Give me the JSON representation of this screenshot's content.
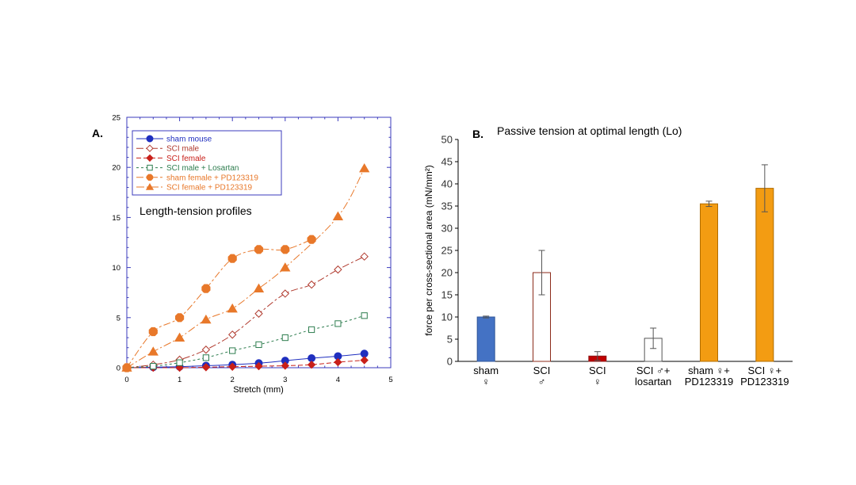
{
  "chart_data": [
    {
      "type": "line",
      "panel_label": "A.",
      "annotation": "Length-tension profiles",
      "xlabel": "Stretch (mm)",
      "ylabel": "",
      "xlim": [
        0,
        5
      ],
      "ylim": [
        0,
        25
      ],
      "x_ticks": [
        "0",
        "1",
        "2",
        "3",
        "4",
        "5"
      ],
      "y_ticks": [
        "0",
        "5",
        "10",
        "15",
        "20",
        "25"
      ],
      "legend_position": "top-left",
      "series": [
        {
          "name": "sham mouse",
          "color": "#1f2fbf",
          "marker": "circle-filled",
          "dash": "none",
          "x": [
            0,
            0.5,
            1,
            1.5,
            2,
            2.5,
            3,
            3.5,
            4,
            4.5
          ],
          "y": [
            0,
            0.05,
            0.1,
            0.2,
            0.3,
            0.45,
            0.7,
            0.95,
            1.15,
            1.4
          ]
        },
        {
          "name": "SCI male",
          "color": "#b03a2e",
          "marker": "diamond-open",
          "dash": "long-short",
          "x": [
            0,
            0.5,
            1,
            1.5,
            2,
            2.5,
            3,
            3.5,
            4,
            4.5
          ],
          "y": [
            0,
            0.3,
            0.8,
            1.8,
            3.3,
            5.4,
            7.4,
            8.3,
            9.8,
            11.1
          ]
        },
        {
          "name": "SCI female",
          "color": "#c8201a",
          "marker": "diamond-filled",
          "dash": "dash",
          "x": [
            0,
            0.5,
            1,
            1.5,
            2,
            2.5,
            3,
            3.5,
            4,
            4.5
          ],
          "y": [
            0,
            0,
            0,
            0.05,
            0.1,
            0.15,
            0.2,
            0.3,
            0.55,
            0.75
          ]
        },
        {
          "name": "SCI male + Losartan",
          "color": "#2e7d4f",
          "marker": "square-open",
          "dash": "short",
          "x": [
            0,
            0.5,
            1,
            1.5,
            2,
            2.5,
            3,
            3.5,
            4,
            4.5
          ],
          "y": [
            0,
            0.15,
            0.5,
            1.0,
            1.7,
            2.3,
            3.0,
            3.8,
            4.4,
            5.2
          ]
        },
        {
          "name": "sham female + PD123319",
          "color": "#e8782a",
          "marker": "octagon-filled",
          "dash": "long-short",
          "x": [
            0,
            0.5,
            1,
            1.5,
            2,
            2.5,
            3,
            3.5
          ],
          "y": [
            0,
            3.6,
            5.0,
            7.9,
            10.9,
            11.8,
            11.8,
            12.8
          ]
        },
        {
          "name": "SCI female + PD123319",
          "color": "#e8782a",
          "marker": "triangle-filled",
          "dash": "long-dot",
          "x": [
            0,
            0.5,
            1,
            1.5,
            2,
            2.5,
            3,
            4,
            4.5
          ],
          "y": [
            0,
            1.6,
            3.0,
            4.8,
            5.9,
            7.9,
            10.0,
            15.1,
            19.9
          ]
        }
      ]
    },
    {
      "type": "bar",
      "panel_label": "B.",
      "title": "Passive tension at optimal length (Lo)",
      "ylabel": "force per cross-sectional area (mN/mm²)",
      "ylim": [
        0,
        50
      ],
      "y_ticks": [
        "0",
        "5",
        "10",
        "15",
        "20",
        "25",
        "30",
        "35",
        "40",
        "45",
        "50"
      ],
      "categories": [
        {
          "line1": "sham",
          "line2": "♀"
        },
        {
          "line1": "SCI",
          "line2": "♂"
        },
        {
          "line1": "SCI",
          "line2": "♀"
        },
        {
          "line1": "SCI ♂+",
          "line2": "losartan"
        },
        {
          "line1": "sham ♀+",
          "line2": "PD123319"
        },
        {
          "line1": "SCI ♀+",
          "line2": "PD123319"
        }
      ],
      "values": [
        10,
        20,
        1.2,
        5.2,
        35.5,
        39
      ],
      "errors": [
        0.2,
        5,
        1,
        2.3,
        0.6,
        5.3
      ],
      "fills": [
        "#4472c4",
        "#ffffff",
        "#c00000",
        "#ffffff",
        "#f39c12",
        "#f39c12"
      ],
      "strokes": [
        "#2f5597",
        "#8b2a1a",
        "#8b1a1a",
        "#555555",
        "#b06c00",
        "#b06c00"
      ]
    }
  ]
}
